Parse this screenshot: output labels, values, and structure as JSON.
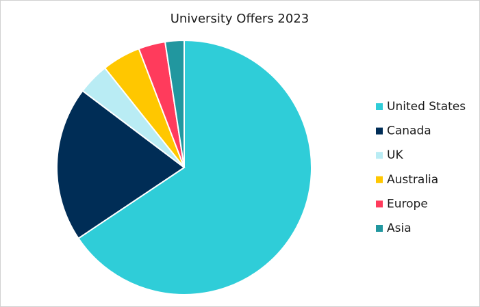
{
  "chart_data": {
    "type": "pie",
    "title": "University Offers 2023",
    "categories": [
      "United States",
      "Canada",
      "UK",
      "Australia",
      "Europe",
      "Asia"
    ],
    "values": [
      65.6,
      19.7,
      4.0,
      4.9,
      3.4,
      2.4
    ],
    "colors": [
      "#2fcdd8",
      "#002d56",
      "#b9ecf4",
      "#ffc700",
      "#ff3b5c",
      "#21979f"
    ],
    "legend": "right"
  }
}
